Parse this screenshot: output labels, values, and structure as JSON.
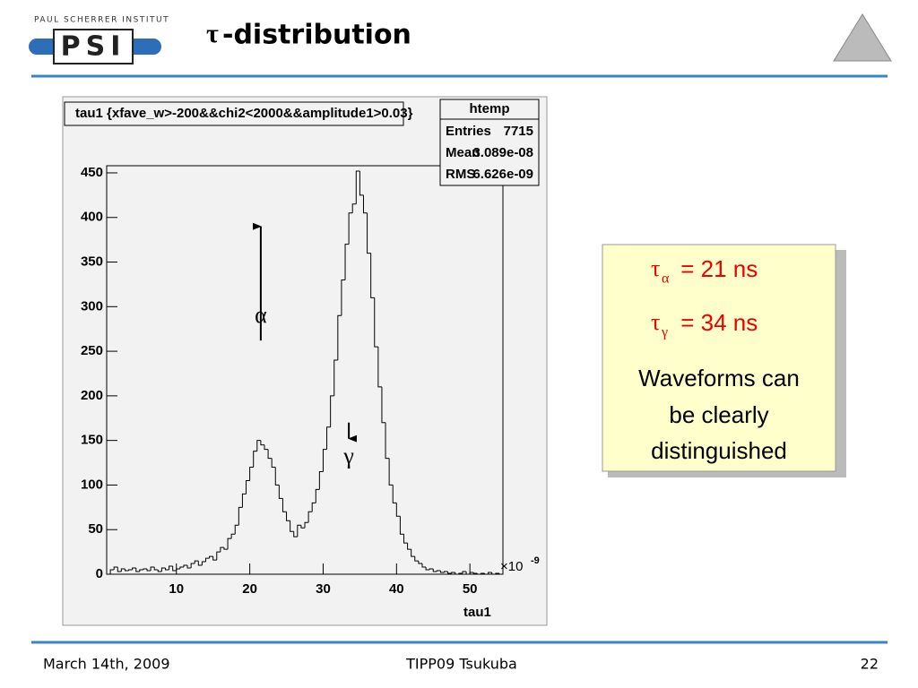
{
  "slide": {
    "logo_text": "PAUL SCHERRER INSTITUT",
    "logo": "PSI",
    "title_symbol": "τ",
    "title": "-distribution",
    "box": {
      "line1": {
        "symbol": "τ",
        "sub": "α",
        "text": " = 21 ns"
      },
      "line2": {
        "symbol": "τ",
        "sub": "γ",
        "text": " = 34 ns"
      },
      "note": [
        "Waveforms can",
        "be clearly",
        "distinguished"
      ]
    },
    "footer": {
      "date": "March 14th, 2009",
      "event": "TIPP09 Tsukuba",
      "page": "22"
    }
  },
  "chart_data": {
    "type": "histogram",
    "title": "tau1 {xfave_w>-200&&chi2<2000&&amplitude1>0.03}",
    "x_label": "tau1",
    "x_multiplier": "×10",
    "x_exponent": "-9",
    "stats": {
      "name": "htemp",
      "rows": [
        [
          "Entries",
          7715
        ],
        [
          "Mean",
          "3.089e-08"
        ],
        [
          "RMS",
          "6.626e-09"
        ]
      ]
    },
    "annotations": [
      {
        "text": "α",
        "x": 21.5,
        "y": 390,
        "direction": "down",
        "from": 262
      },
      {
        "text": "γ",
        "x": 33.5,
        "y": 152,
        "direction": "up",
        "from": 170
      }
    ],
    "color": "#000000",
    "bins": [
      0.5,
      1,
      1.5,
      2,
      2.5,
      3,
      3.5,
      4,
      4.5,
      5,
      5.5,
      6,
      6.5,
      7,
      7.5,
      8,
      8.5,
      9,
      9.5,
      10,
      10.5,
      11,
      11.5,
      12,
      12.5,
      13,
      13.5,
      14,
      14.5,
      15,
      15.5,
      16,
      16.5,
      17,
      17.5,
      18,
      18.5,
      19,
      19.5,
      20,
      20.5,
      21,
      21.5,
      22,
      22.5,
      23,
      23.5,
      24,
      24.5,
      25,
      25.5,
      26,
      26.5,
      27,
      27.5,
      28,
      28.5,
      29,
      29.5,
      30,
      30.5,
      31,
      31.5,
      32,
      32.5,
      33,
      33.5,
      34,
      34.5,
      35,
      35.5,
      36,
      36.5,
      37,
      37.5,
      38,
      38.5,
      39,
      39.5,
      40,
      40.5,
      41,
      41.5,
      42,
      42.5,
      43,
      43.5,
      44,
      44.5,
      45,
      45.5,
      46,
      46.5,
      47,
      47.5,
      48,
      48.5,
      49,
      49.5,
      50,
      50.5,
      51,
      51.5,
      52,
      52.5,
      53,
      53.5,
      54,
      54.5
    ],
    "values": [
      0,
      5,
      8,
      3,
      6,
      4,
      5,
      7,
      3,
      5,
      6,
      4,
      8,
      5,
      3,
      7,
      5,
      9,
      4,
      6,
      8,
      10,
      7,
      12,
      15,
      10,
      14,
      18,
      20,
      16,
      25,
      30,
      28,
      40,
      45,
      55,
      75,
      90,
      105,
      120,
      138,
      150,
      145,
      140,
      130,
      120,
      100,
      85,
      70,
      60,
      48,
      42,
      55,
      52,
      58,
      70,
      80,
      95,
      115,
      140,
      165,
      200,
      240,
      290,
      330,
      370,
      405,
      415,
      452,
      425,
      405,
      360,
      310,
      255,
      210,
      170,
      130,
      100,
      80,
      65,
      45,
      35,
      28,
      20,
      15,
      12,
      8,
      5,
      6,
      3,
      4,
      2,
      3,
      1,
      2,
      0,
      1,
      3,
      0,
      2,
      1,
      0,
      1,
      0,
      2,
      0,
      1,
      0
    ],
    "xlim": [
      0.5,
      54.5
    ],
    "xticks": [
      10,
      20,
      30,
      40,
      50
    ],
    "ylim": [
      0,
      458
    ],
    "yticks": [
      0,
      50,
      100,
      150,
      200,
      250,
      300,
      350,
      400,
      450
    ]
  }
}
